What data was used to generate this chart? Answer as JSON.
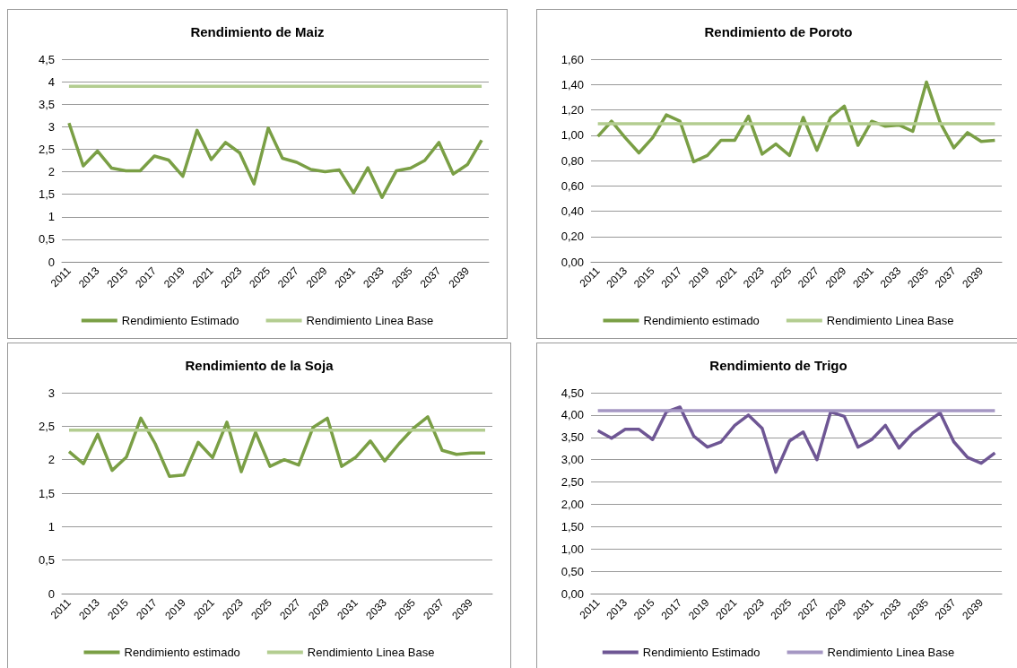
{
  "chart_data": [
    {
      "type": "line",
      "title": "Rendimiento de Maiz",
      "categories": [
        "2011",
        null,
        "2013",
        null,
        "2015",
        null,
        "2017",
        null,
        "2019",
        null,
        "2021",
        null,
        "2023",
        null,
        "2025",
        null,
        "2027",
        null,
        "2029",
        null,
        "2031",
        null,
        "2033",
        null,
        "2035",
        null,
        "2037",
        null,
        "2039",
        null
      ],
      "series": [
        {
          "name": "Rendimiento Estimado",
          "color": "#7a9f45",
          "values": [
            3.08,
            2.13,
            2.46,
            2.08,
            2.02,
            2.02,
            2.35,
            2.26,
            1.9,
            2.92,
            2.27,
            2.65,
            2.42,
            1.73,
            2.97,
            2.3,
            2.21,
            2.05,
            2.0,
            2.04,
            1.53,
            2.09,
            1.43,
            2.02,
            2.08,
            2.25,
            2.65,
            1.95,
            2.16,
            2.7
          ]
        },
        {
          "name": "Rendimiento Linea Base",
          "color": "#b3cd90",
          "values": [
            3.9,
            3.9,
            3.9,
            3.9,
            3.9,
            3.9,
            3.9,
            3.9,
            3.9,
            3.9,
            3.9,
            3.9,
            3.9,
            3.9,
            3.9,
            3.9,
            3.9,
            3.9,
            3.9,
            3.9,
            3.9,
            3.9,
            3.9,
            3.9,
            3.9,
            3.9,
            3.9,
            3.9,
            3.9,
            3.9
          ]
        }
      ],
      "ylim": [
        0,
        4.5
      ],
      "yticks": [
        0,
        {
          "value": 0.5,
          "label": "0,5"
        },
        1,
        {
          "value": 1.5,
          "label": "1,5"
        },
        2,
        {
          "value": 2.5,
          "label": "2,5"
        },
        3,
        {
          "value": 3.5,
          "label": "3,5"
        },
        4,
        {
          "value": 4.5,
          "label": "4,5"
        }
      ],
      "grid": "y",
      "legend": "bottom",
      "marker": "none",
      "line_style": "solid"
    },
    {
      "type": "line",
      "title": "Rendimiento de Poroto",
      "categories": [
        "2011",
        null,
        "2013",
        null,
        "2015",
        null,
        "2017",
        null,
        "2019",
        null,
        "2021",
        null,
        "2023",
        null,
        "2025",
        null,
        "2027",
        null,
        "2029",
        null,
        "2031",
        null,
        "2033",
        null,
        "2035",
        null,
        "2037",
        null,
        "2039",
        null
      ],
      "series": [
        {
          "name": "Rendimiento estimado",
          "color": "#7a9f45",
          "values": [
            0.99,
            1.11,
            0.98,
            0.86,
            0.98,
            1.16,
            1.11,
            0.79,
            0.84,
            0.96,
            0.96,
            1.15,
            0.85,
            0.93,
            0.84,
            1.14,
            0.88,
            1.14,
            1.23,
            0.92,
            1.11,
            1.07,
            1.08,
            1.03,
            1.42,
            1.1,
            0.9,
            1.02,
            0.95,
            0.96
          ]
        },
        {
          "name": "Rendimiento Linea Base",
          "color": "#b3cd90",
          "values": [
            1.09,
            1.09,
            1.09,
            1.09,
            1.09,
            1.09,
            1.09,
            1.09,
            1.09,
            1.09,
            1.09,
            1.09,
            1.09,
            1.09,
            1.09,
            1.09,
            1.09,
            1.09,
            1.09,
            1.09,
            1.09,
            1.09,
            1.09,
            1.09,
            1.09,
            1.09,
            1.09,
            1.09,
            1.09,
            1.09
          ]
        }
      ],
      "ylim": [
        0,
        1.6
      ],
      "yticks": [
        {
          "value": 0,
          "label": "0,00"
        },
        {
          "value": 0.2,
          "label": "0,20"
        },
        {
          "value": 0.4,
          "label": "0,40"
        },
        {
          "value": 0.6,
          "label": "0,60"
        },
        {
          "value": 0.8,
          "label": "0,80"
        },
        {
          "value": 1.0,
          "label": "1,00"
        },
        {
          "value": 1.2,
          "label": "1,20"
        },
        {
          "value": 1.4,
          "label": "1,40"
        },
        {
          "value": 1.6,
          "label": "1,60"
        }
      ],
      "grid": "y",
      "legend": "bottom",
      "marker": "none",
      "line_style": "solid"
    },
    {
      "type": "line",
      "title": "Rendimiento de la Soja",
      "categories": [
        "2011",
        null,
        "2013",
        null,
        "2015",
        null,
        "2017",
        null,
        "2019",
        null,
        "2021",
        null,
        "2023",
        null,
        "2025",
        null,
        "2027",
        null,
        "2029",
        null,
        "2031",
        null,
        "2033",
        null,
        "2035",
        null,
        "2037",
        null,
        "2039",
        null
      ],
      "series": [
        {
          "name": "Rendimiento estimado",
          "color": "#7a9f45",
          "values": [
            2.12,
            1.94,
            2.38,
            1.84,
            2.04,
            2.62,
            2.24,
            1.75,
            1.77,
            2.26,
            2.03,
            2.56,
            1.82,
            2.41,
            1.9,
            2.0,
            1.92,
            2.48,
            2.62,
            1.9,
            2.04,
            2.28,
            1.98,
            2.24,
            2.47,
            2.64,
            2.14,
            2.08,
            2.1,
            2.1
          ]
        },
        {
          "name": "Rendimiento Linea Base",
          "color": "#b3cd90",
          "values": [
            2.44,
            2.44,
            2.44,
            2.44,
            2.44,
            2.44,
            2.44,
            2.44,
            2.44,
            2.44,
            2.44,
            2.44,
            2.44,
            2.44,
            2.44,
            2.44,
            2.44,
            2.44,
            2.44,
            2.44,
            2.44,
            2.44,
            2.44,
            2.44,
            2.44,
            2.44,
            2.44,
            2.44,
            2.44,
            2.44
          ]
        }
      ],
      "ylim": [
        0,
        3
      ],
      "yticks": [
        0,
        {
          "value": 0.5,
          "label": "0,5"
        },
        1,
        {
          "value": 1.5,
          "label": "1,5"
        },
        2,
        {
          "value": 2.5,
          "label": "2,5"
        },
        3
      ],
      "grid": "y",
      "legend": "bottom",
      "marker": "none",
      "line_style": "solid"
    },
    {
      "type": "line",
      "title": "Rendimiento de Trigo",
      "categories": [
        "2011",
        null,
        "2013",
        null,
        "2015",
        null,
        "2017",
        null,
        "2019",
        null,
        "2021",
        null,
        "2023",
        null,
        "2025",
        null,
        "2027",
        null,
        "2029",
        null,
        "2031",
        null,
        "2033",
        null,
        "2035",
        null,
        "2037",
        null,
        "2039",
        null
      ],
      "series": [
        {
          "name": "Rendimiento Estimado",
          "color": "#6e5694",
          "values": [
            3.65,
            3.48,
            3.68,
            3.68,
            3.45,
            4.07,
            4.18,
            3.53,
            3.28,
            3.4,
            3.77,
            4.0,
            3.7,
            2.72,
            3.42,
            3.62,
            3.0,
            4.07,
            3.97,
            3.28,
            3.45,
            3.77,
            3.26,
            3.6,
            3.83,
            4.05,
            3.4,
            3.05,
            2.92,
            3.15
          ]
        },
        {
          "name": "Rendimiento Linea Base",
          "color": "#a597c3",
          "values": [
            4.1,
            4.1,
            4.1,
            4.1,
            4.1,
            4.1,
            4.1,
            4.1,
            4.1,
            4.1,
            4.1,
            4.1,
            4.1,
            4.1,
            4.1,
            4.1,
            4.1,
            4.1,
            4.1,
            4.1,
            4.1,
            4.1,
            4.1,
            4.1,
            4.1,
            4.1,
            4.1,
            4.1,
            4.1,
            4.1
          ]
        }
      ],
      "ylim": [
        0,
        4.5
      ],
      "yticks": [
        {
          "value": 0,
          "label": "0,00"
        },
        {
          "value": 0.5,
          "label": "0,50"
        },
        {
          "value": 1,
          "label": "1,00"
        },
        {
          "value": 1.5,
          "label": "1,50"
        },
        {
          "value": 2,
          "label": "2,00"
        },
        {
          "value": 2.5,
          "label": "2,50"
        },
        {
          "value": 3,
          "label": "3,00"
        },
        {
          "value": 3.5,
          "label": "3,50"
        },
        {
          "value": 4,
          "label": "4,00"
        },
        {
          "value": 4.5,
          "label": "4,50"
        }
      ],
      "grid": "y",
      "legend": "bottom",
      "marker": "none",
      "line_style": "solid"
    }
  ]
}
